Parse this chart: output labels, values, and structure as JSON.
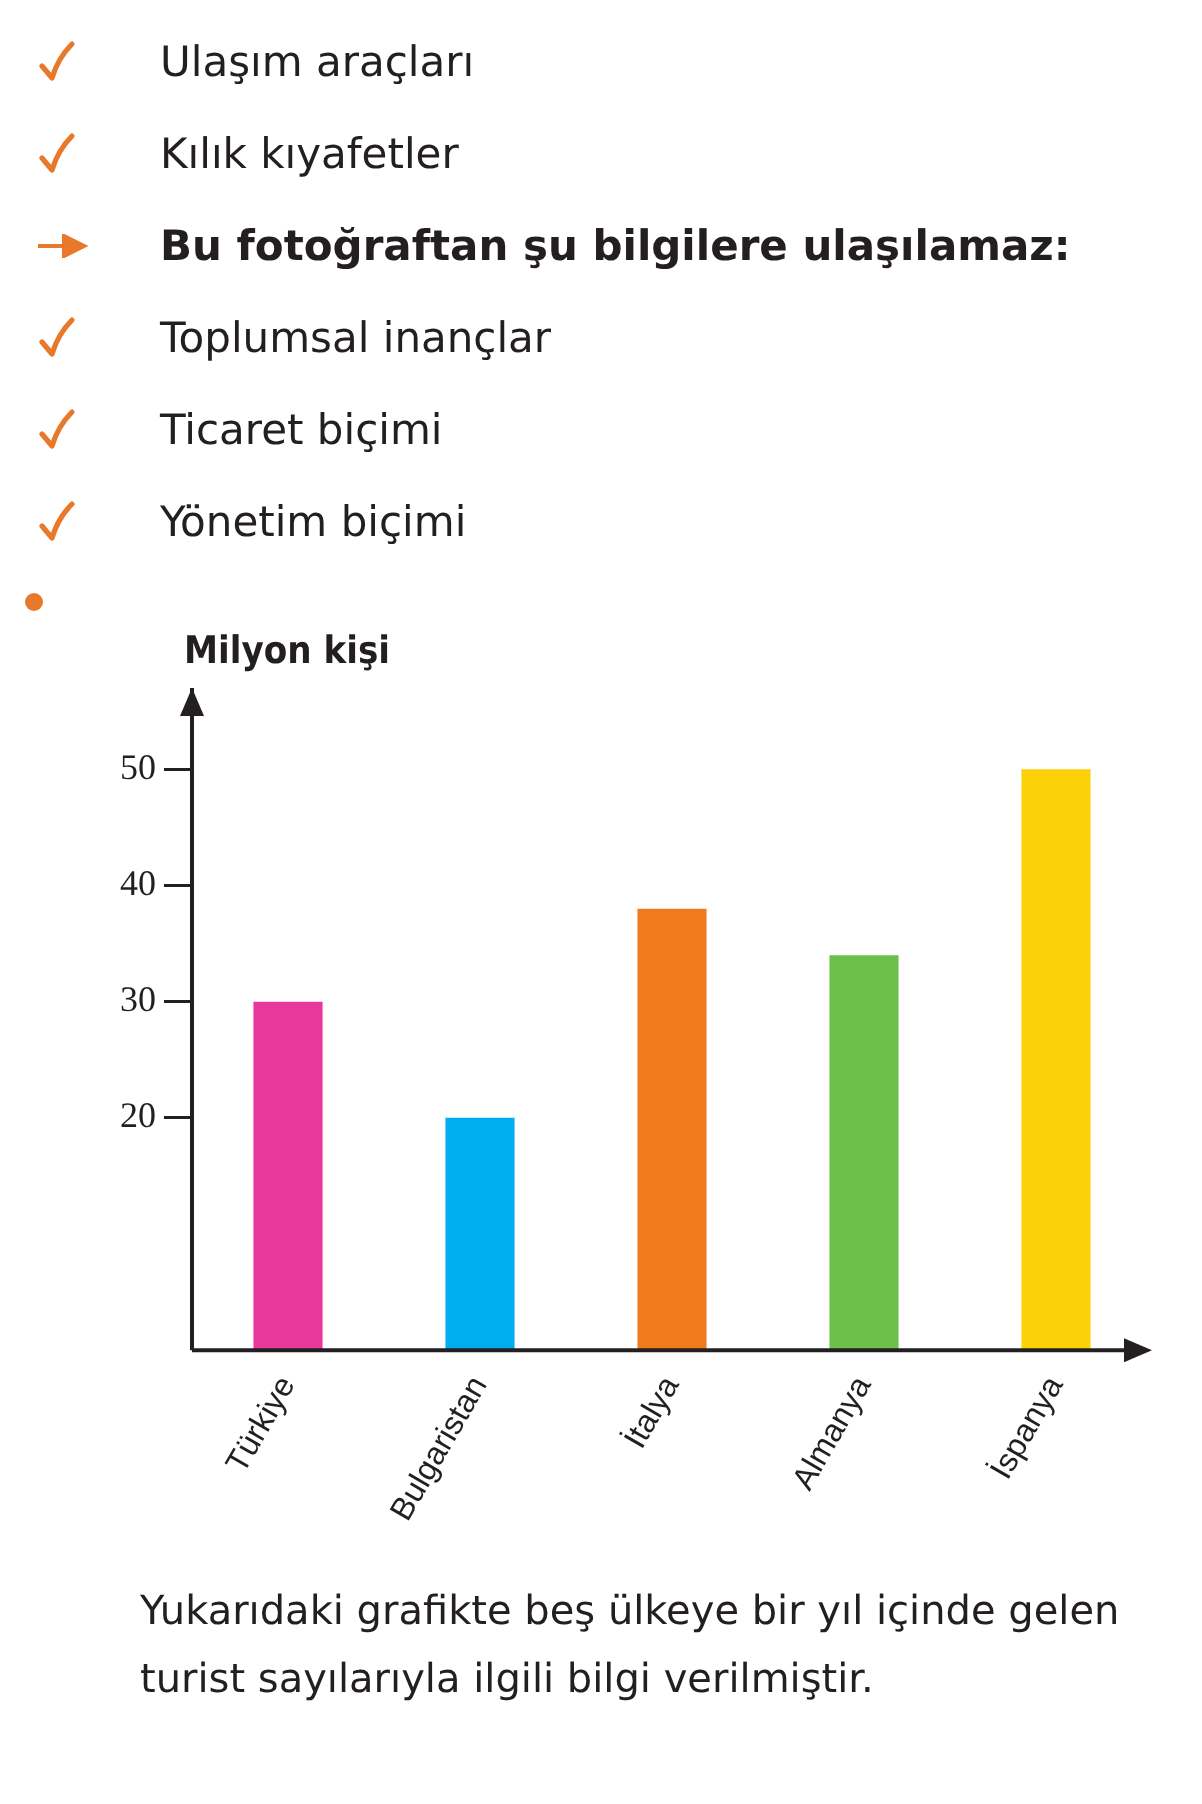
{
  "chart_data": {
    "type": "bar",
    "subtitle": "Bu fotoğraftan şu bilgilere ulaşılamaz:",
    "ylabel": "Milyon kişi",
    "categories": [
      "Türkiye",
      "Bulgaristan",
      "İtalya",
      "Almanya",
      "İspanya"
    ],
    "values": [
      30,
      20,
      38,
      34,
      50
    ],
    "colors": [
      "#e8399a",
      "#00aeef",
      "#f07a1e",
      "#6cc04a",
      "#fcd107"
    ],
    "ylim": [
      0,
      57
    ],
    "yticks": [
      20,
      30,
      40,
      50
    ],
    "grid": false,
    "legend": false,
    "annotations": [
      "Ulaşım araçları",
      "Kılık kıyafetler",
      "Toplumsal inançlar",
      "Ticaret biçimi",
      "Yönetim biçimi",
      "Yukarıdaki grafikte beş ülkeye bir yıl içinde gelen turist sayılarıyla ilgili bilgi verilmiştir."
    ]
  }
}
